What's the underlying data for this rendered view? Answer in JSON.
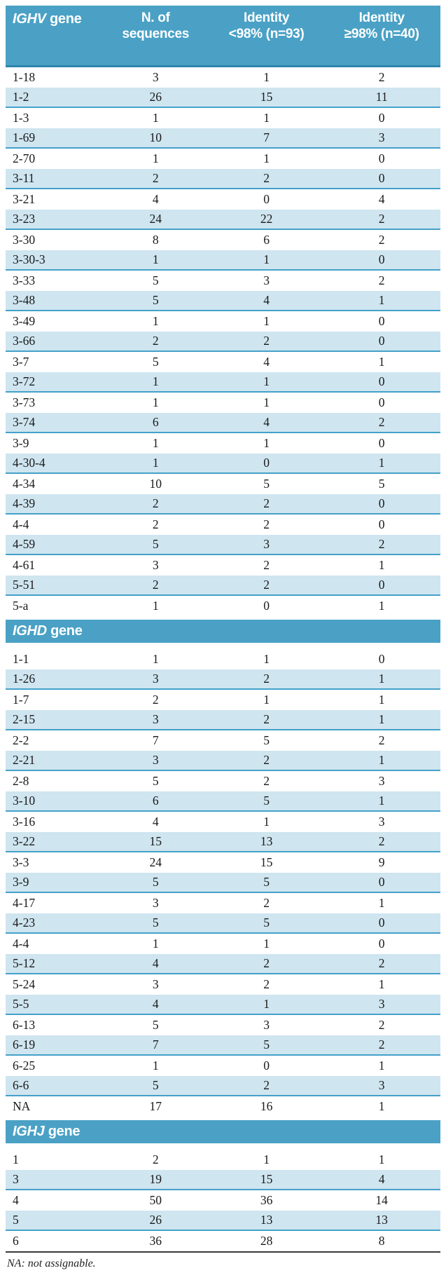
{
  "colors": {
    "band": "#4aa1c5",
    "band_edge": "#2e86ad",
    "stripe": "#cfe5f0",
    "stripe_border": "#44a1c9",
    "bottom_rule": "#3a3a3a"
  },
  "header": {
    "col1": {
      "symbol": "IGHV",
      "word": "gene"
    },
    "col2": {
      "line1": "N. of",
      "line2": "sequences"
    },
    "col3": {
      "line1": "Identity",
      "line2": "<98% (n=93)"
    },
    "col4": {
      "line1": "Identity",
      "line2": "≥98% (n=40)"
    }
  },
  "sections": [
    {
      "id": "ighv",
      "rows": [
        [
          "1-18",
          3,
          1,
          2
        ],
        [
          "1-2",
          26,
          15,
          11
        ],
        [
          "1-3",
          1,
          1,
          0
        ],
        [
          "1-69",
          10,
          7,
          3
        ],
        [
          "2-70",
          1,
          1,
          0
        ],
        [
          "3-11",
          2,
          2,
          0
        ],
        [
          "3-21",
          4,
          0,
          4
        ],
        [
          "3-23",
          24,
          22,
          2
        ],
        [
          "3-30",
          8,
          6,
          2
        ],
        [
          "3-30-3",
          1,
          1,
          0
        ],
        [
          "3-33",
          5,
          3,
          2
        ],
        [
          "3-48",
          5,
          4,
          1
        ],
        [
          "3-49",
          1,
          1,
          0
        ],
        [
          "3-66",
          2,
          2,
          0
        ],
        [
          "3-7",
          5,
          4,
          1
        ],
        [
          "3-72",
          1,
          1,
          0
        ],
        [
          "3-73",
          1,
          1,
          0
        ],
        [
          "3-74",
          6,
          4,
          2
        ],
        [
          "3-9",
          1,
          1,
          0
        ],
        [
          "4-30-4",
          1,
          0,
          1
        ],
        [
          "4-34",
          10,
          5,
          5
        ],
        [
          "4-39",
          2,
          2,
          0
        ],
        [
          "4-4",
          2,
          2,
          0
        ],
        [
          "4-59",
          5,
          3,
          2
        ],
        [
          "4-61",
          3,
          2,
          1
        ],
        [
          "5-51",
          2,
          2,
          0
        ],
        [
          "5-a",
          1,
          0,
          1
        ]
      ]
    },
    {
      "id": "ighd",
      "band": {
        "symbol": "IGHD",
        "word": "gene"
      },
      "rows": [
        [
          "1-1",
          1,
          1,
          0
        ],
        [
          "1-26",
          3,
          2,
          1
        ],
        [
          "1-7",
          2,
          1,
          1
        ],
        [
          "2-15",
          3,
          2,
          1
        ],
        [
          "2-2",
          7,
          5,
          2
        ],
        [
          "2-21",
          3,
          2,
          1
        ],
        [
          "2-8",
          5,
          2,
          3
        ],
        [
          "3-10",
          6,
          5,
          1
        ],
        [
          "3-16",
          4,
          1,
          3
        ],
        [
          "3-22",
          15,
          13,
          2
        ],
        [
          "3-3",
          24,
          15,
          9
        ],
        [
          "3-9",
          5,
          5,
          0
        ],
        [
          "4-17",
          3,
          2,
          1
        ],
        [
          "4-23",
          5,
          5,
          0
        ],
        [
          "4-4",
          1,
          1,
          0
        ],
        [
          "5-12",
          4,
          2,
          2
        ],
        [
          "5-24",
          3,
          2,
          1
        ],
        [
          "5-5",
          4,
          1,
          3
        ],
        [
          "6-13",
          5,
          3,
          2
        ],
        [
          "6-19",
          7,
          5,
          2
        ],
        [
          "6-25",
          1,
          0,
          1
        ],
        [
          "6-6",
          5,
          2,
          3
        ],
        [
          "NA",
          17,
          16,
          1
        ]
      ]
    },
    {
      "id": "ighj",
      "band": {
        "symbol": "IGHJ",
        "word": "gene"
      },
      "rows": [
        [
          "1",
          2,
          1,
          1
        ],
        [
          "3",
          19,
          15,
          4
        ],
        [
          "4",
          50,
          36,
          14
        ],
        [
          "5",
          26,
          13,
          13
        ],
        [
          "6",
          36,
          28,
          8
        ]
      ]
    }
  ],
  "footnote": "NA: not assignable."
}
